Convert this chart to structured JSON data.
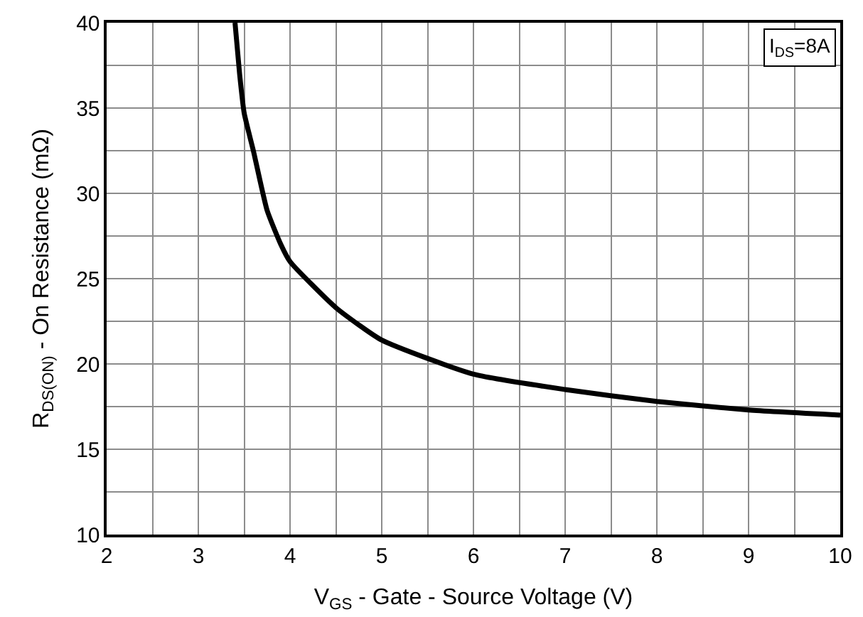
{
  "chart_data": {
    "type": "line",
    "xlabel": "V$_{GS}$ - Gate - Source Voltage (V)",
    "ylabel": "R$_{DS(ON)}$ - On Resistance (mΩ)",
    "annotations": [
      "I$_{DS}$=8A"
    ],
    "series": [
      {
        "color": "#000000",
        "x": [
          3.4,
          3.45,
          3.5,
          3.6,
          3.75,
          3.9,
          4,
          4.5,
          5,
          6,
          7,
          8,
          9,
          10
        ],
        "values": [
          40,
          37,
          34.7,
          32.5,
          29,
          27,
          26,
          23.3,
          21.4,
          19.4,
          18.5,
          17.8,
          17.3,
          17.0
        ]
      }
    ],
    "xlim": [
      2,
      10
    ],
    "ylim": [
      10,
      40
    ],
    "xticks": [
      2,
      {
        "value": 2.5,
        "label": null
      },
      3,
      {
        "value": 3.5,
        "label": null
      },
      4,
      {
        "value": 4.5,
        "label": null
      },
      5,
      {
        "value": 5.5,
        "label": null
      },
      6,
      {
        "value": 6.5,
        "label": null
      },
      7,
      {
        "value": 7.5,
        "label": null
      },
      8,
      {
        "value": 8.5,
        "label": null
      },
      9,
      {
        "value": 9.5,
        "label": null
      },
      10
    ],
    "yticks": [
      10,
      {
        "value": 12.5,
        "label": null
      },
      15,
      {
        "value": 17.5,
        "label": null
      },
      20,
      {
        "value": 22.5,
        "label": null
      },
      25,
      {
        "value": 27.5,
        "label": null
      },
      30,
      {
        "value": 32.5,
        "label": null
      },
      35,
      {
        "value": 37.5,
        "label": null
      },
      40
    ],
    "grid": true,
    "legend": false,
    "marker": "none",
    "line_style": "solid"
  }
}
